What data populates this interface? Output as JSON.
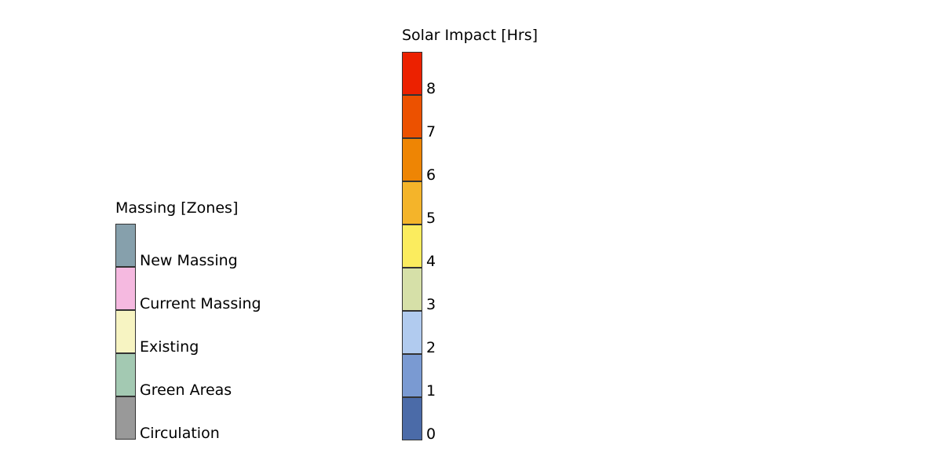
{
  "massing_legend": {
    "title": "Massing [Zones]",
    "items": [
      {
        "label": "New Massing",
        "color": "#86A0AC"
      },
      {
        "label": "Current Massing",
        "color": "#F5B9E0"
      },
      {
        "label": "Existing",
        "color": "#F7F4C2"
      },
      {
        "label": "Green Areas",
        "color": "#A3C9B2"
      },
      {
        "label": "Circulation",
        "color": "#999999"
      }
    ]
  },
  "solar_legend": {
    "title": "Solar Impact [Hrs]",
    "items": [
      {
        "label": "8",
        "color": "#EC2100"
      },
      {
        "label": "7",
        "color": "#EC5100"
      },
      {
        "label": "6",
        "color": "#EE8504"
      },
      {
        "label": "5",
        "color": "#F4B42A"
      },
      {
        "label": "4",
        "color": "#FBEC5E"
      },
      {
        "label": "3",
        "color": "#D6E0A8"
      },
      {
        "label": "2",
        "color": "#B1CBEF"
      },
      {
        "label": "1",
        "color": "#7A9AD2"
      },
      {
        "label": "0",
        "color": "#4B6BA8"
      }
    ]
  }
}
